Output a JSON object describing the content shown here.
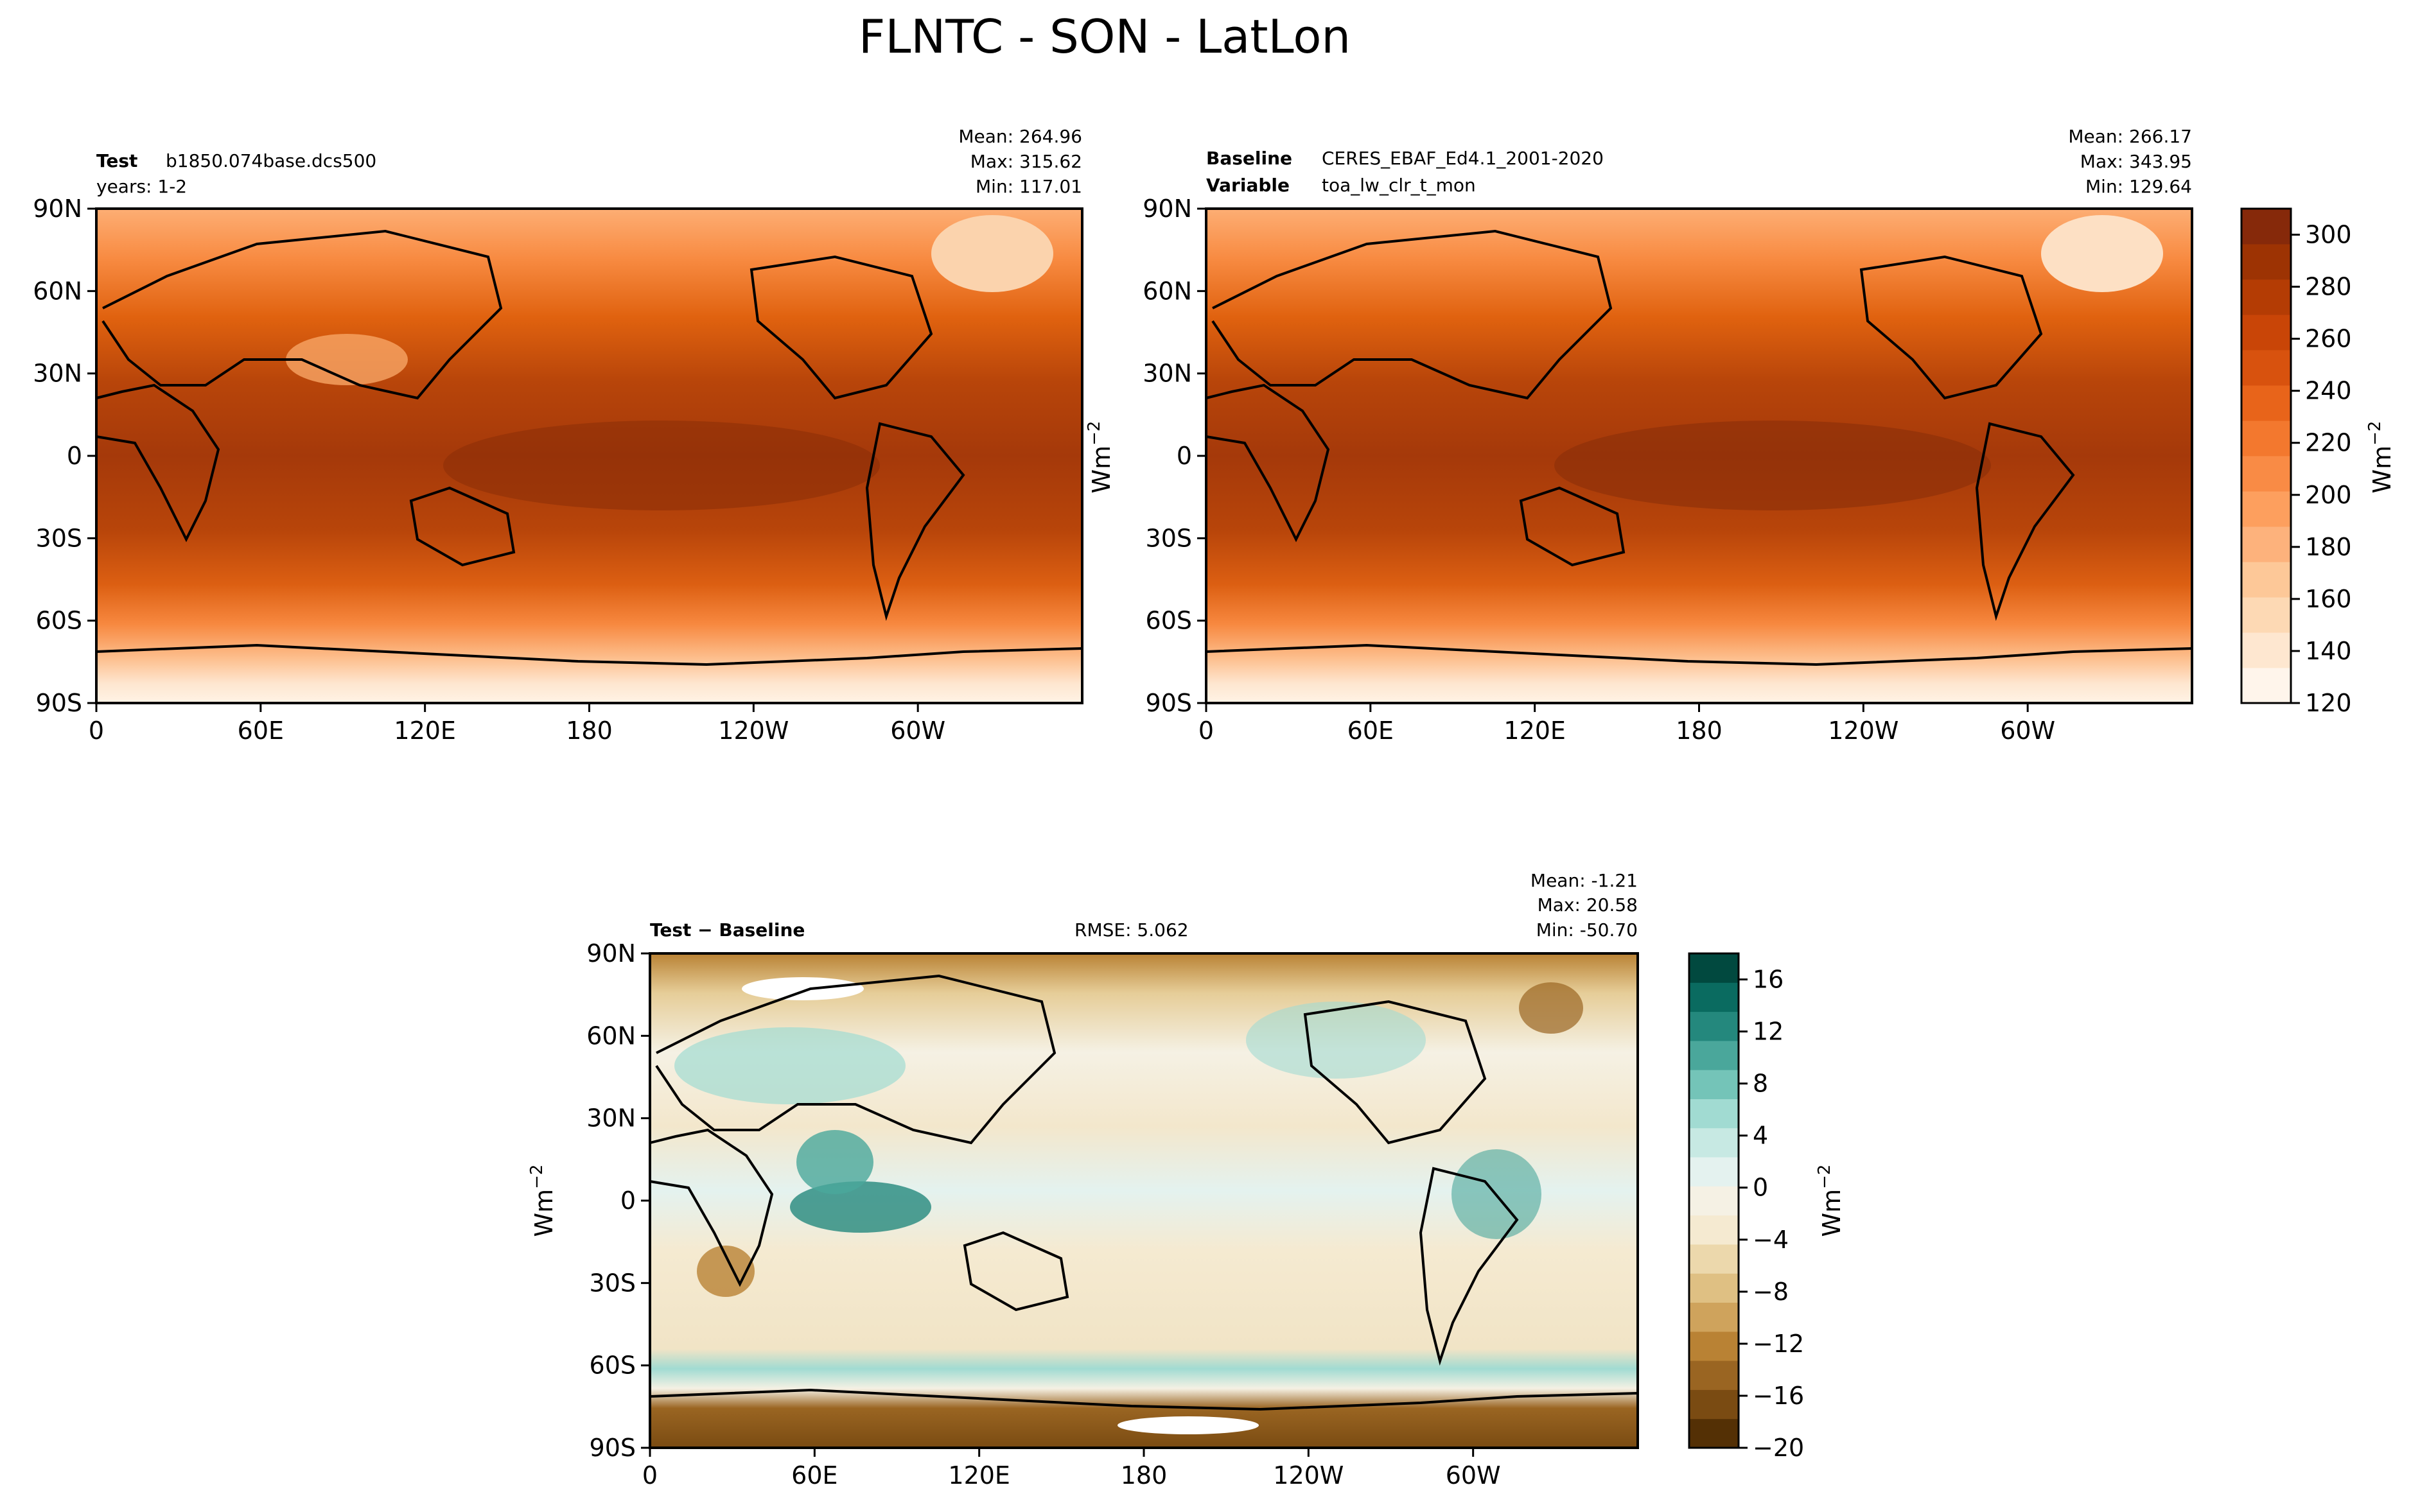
{
  "figure": {
    "title": "FLNTC - SON - LatLon"
  },
  "chart_data": [
    {
      "type": "heatmap",
      "panel": "test",
      "header": {
        "label_bold": "Test",
        "label_value": "b1850.074base.dcs500",
        "line2": "years: 1-2",
        "mean": "Mean: 264.96",
        "max": "Max: 315.62",
        "min": "Min: 117.01"
      },
      "stats": {
        "mean": 264.96,
        "max": 315.62,
        "min": 117.01
      },
      "x_ticks": [
        "0",
        "60E",
        "120E",
        "180",
        "120W",
        "60W"
      ],
      "y_ticks": [
        "90N",
        "60N",
        "30N",
        "0",
        "30S",
        "60S",
        "90S"
      ],
      "xlim": [
        0,
        360
      ],
      "ylim": [
        -90,
        90
      ],
      "ylabel": "",
      "colormap": "Oranges",
      "grid": false
    },
    {
      "type": "heatmap",
      "panel": "baseline",
      "header": {
        "label_bold": "Baseline",
        "label_value": "CERES_EBAF_Ed4.1_2001-2020",
        "label2_bold": "Variable",
        "label2_value": "toa_lw_clr_t_mon",
        "mean": "Mean: 266.17",
        "max": "Max: 343.95",
        "min": "Min: 129.64"
      },
      "stats": {
        "mean": 266.17,
        "max": 343.95,
        "min": 129.64
      },
      "x_ticks": [
        "0",
        "60E",
        "120E",
        "180",
        "120W",
        "60W"
      ],
      "y_ticks": [
        "90N",
        "60N",
        "30N",
        "0",
        "30S",
        "60S",
        "90S"
      ],
      "xlim": [
        0,
        360
      ],
      "ylim": [
        -90,
        90
      ],
      "ylabel": "Wm",
      "ylabel_sup": "−2",
      "colormap": "Oranges",
      "grid": false,
      "colorbar": {
        "ticks": [
          "300",
          "280",
          "260",
          "240",
          "220",
          "200",
          "180",
          "160",
          "140",
          "120"
        ],
        "range": [
          120,
          310
        ],
        "label": "Wm",
        "label_sup": "−2",
        "colors": [
          "#fff5eb",
          "#fee7d0",
          "#fdd9b4",
          "#fdc898",
          "#fdb27c",
          "#fd9f5e",
          "#f98b45",
          "#f3782e",
          "#e8641a",
          "#d8520e",
          "#c94507",
          "#b43c04",
          "#9d3303",
          "#86290a"
        ]
      }
    },
    {
      "type": "heatmap",
      "panel": "difference",
      "header": {
        "label_bold_a": "Test",
        "label_sep": " − ",
        "label_bold_b": "Baseline",
        "rmse": "RMSE: 5.062",
        "mean": "Mean: -1.21",
        "max": "Max: 20.58",
        "min": "Min: -50.70"
      },
      "stats": {
        "mean": -1.21,
        "max": 20.58,
        "min": -50.7,
        "rmse": 5.062
      },
      "x_ticks": [
        "0",
        "60E",
        "120E",
        "180",
        "120W",
        "60W"
      ],
      "y_ticks": [
        "90N",
        "60N",
        "30N",
        "0",
        "30S",
        "60S",
        "90S"
      ],
      "xlim": [
        0,
        360
      ],
      "ylim": [
        -90,
        90
      ],
      "ylabel": "Wm",
      "ylabel_sup": "−2",
      "colormap": "BrBG",
      "grid": false,
      "colorbar": {
        "ticks": [
          "16",
          "12",
          "8",
          "4",
          "0",
          "−4",
          "−8",
          "−12",
          "−16",
          "−20"
        ],
        "range": [
          -20,
          18
        ],
        "label": "Wm",
        "label_sup": "−2",
        "colors": [
          "#543005",
          "#7a4b12",
          "#9a6522",
          "#b98234",
          "#cfa35c",
          "#dfc083",
          "#ecd8ac",
          "#f5ead1",
          "#f5f1e4",
          "#e4f2ef",
          "#c7e9e3",
          "#a1dbd2",
          "#74c4b8",
          "#4aa79b",
          "#24887d",
          "#0a6b60",
          "#01493f"
        ]
      }
    }
  ]
}
